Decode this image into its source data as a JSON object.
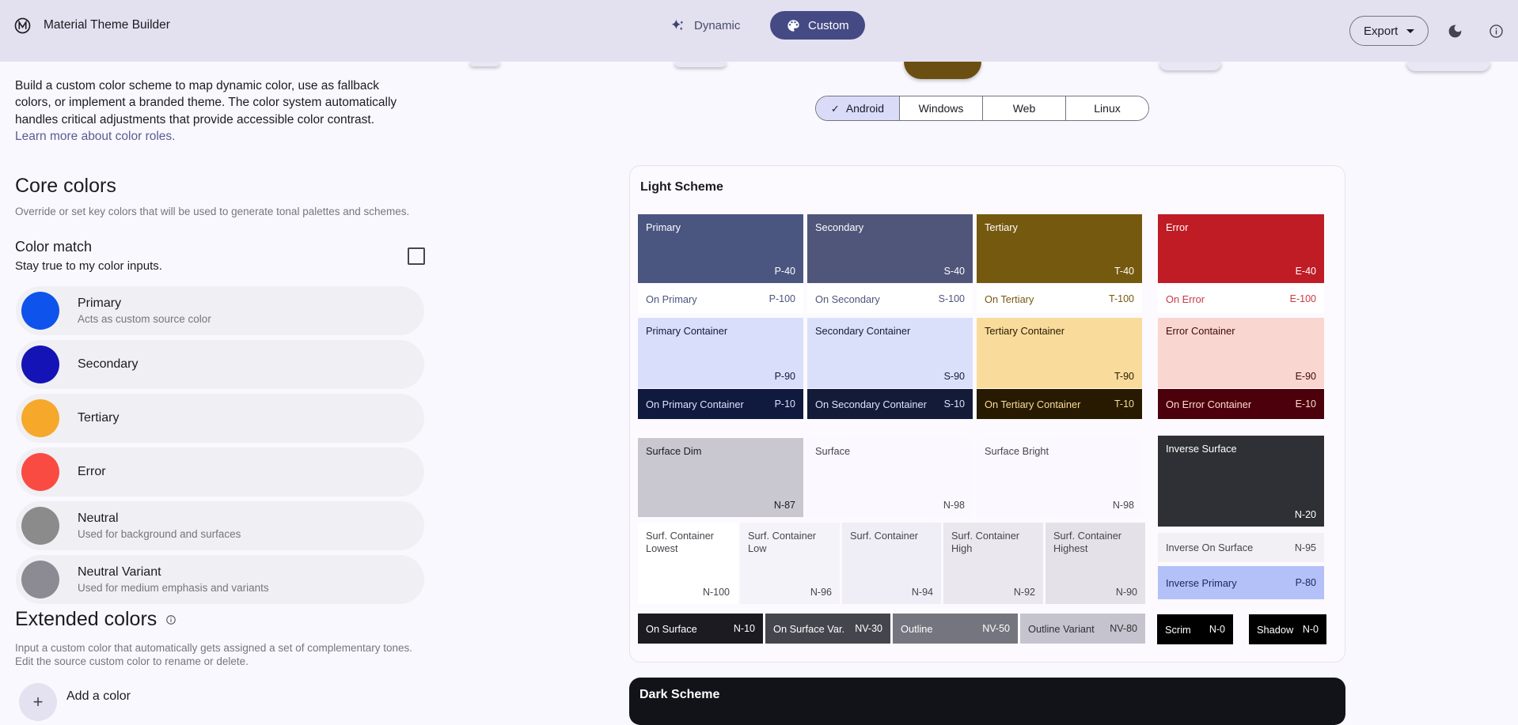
{
  "theme": {
    "header_bg": "#E3E1F0",
    "page_bg": "#FAF8FF",
    "custom_button_bg": "#454A85",
    "selected_platform_bg": "#DADBF7",
    "link_color": "#575E91",
    "clipped_swatch_brown": "#6B4E12",
    "clipped_swatch_light": "#E9E7F3"
  },
  "icons": {
    "check": "✓",
    "plus": "+"
  },
  "header": {
    "title": "Material Theme Builder",
    "dynamic_label": "Dynamic",
    "custom_label": "Custom",
    "export_label": "Export"
  },
  "sidebar": {
    "intro_lines": [
      "Build a custom color scheme to map dynamic color, use as fallback",
      "colors, or implement a branded theme. The color system automatically",
      "handles critical adjustments that provide accessible color contrast."
    ],
    "intro_link": "Learn more about color roles.",
    "core_colors": {
      "title": "Core colors",
      "subtitle": "Override or set key colors that will be used to generate tonal palettes and schemes.",
      "color_match": {
        "title": "Color match",
        "subtitle": "Stay true to my color inputs.",
        "checked": false
      },
      "colors": [
        {
          "name": "Primary",
          "description": "Acts as custom source color",
          "swatch": "#0E53EB"
        },
        {
          "name": "Secondary",
          "description": "",
          "swatch": "#1414B6"
        },
        {
          "name": "Tertiary",
          "description": "",
          "swatch": "#F6A82B"
        },
        {
          "name": "Error",
          "description": "",
          "swatch": "#F94B42"
        },
        {
          "name": "Neutral",
          "description": "Used for background and surfaces",
          "swatch": "#8B8B8B"
        },
        {
          "name": "Neutral Variant",
          "description": "Used for medium emphasis and variants",
          "swatch": "#8C8B94"
        }
      ]
    },
    "extended_colors": {
      "title": "Extended colors",
      "subtitle_lines": [
        "Input a custom color that automatically gets assigned a set of complementary tones.",
        "Edit the source custom color to rename or delete."
      ],
      "add_label": "Add a color"
    }
  },
  "platforms": [
    {
      "label": "Android",
      "selected": true
    },
    {
      "label": "Windows",
      "selected": false
    },
    {
      "label": "Web",
      "selected": false
    },
    {
      "label": "Linux",
      "selected": false
    }
  ],
  "light_scheme": {
    "title": "Light Scheme",
    "cells": [
      {
        "key": "primary",
        "label": "Primary",
        "tone": "P-40",
        "bg": "#4A5580",
        "fg": "#FFFFFF",
        "type": "tall"
      },
      {
        "key": "secondary",
        "label": "Secondary",
        "tone": "S-40",
        "bg": "#4F567A",
        "fg": "#FFFFFF",
        "type": "tall"
      },
      {
        "key": "tertiary",
        "label": "Tertiary",
        "tone": "T-40",
        "bg": "#75590F",
        "fg": "#FFFFFF",
        "type": "tall"
      },
      {
        "key": "error",
        "label": "Error",
        "tone": "E-40",
        "bg": "#BF1C26",
        "fg": "#FFFFFF",
        "type": "tall"
      },
      {
        "key": "on-primary",
        "label": "On Primary",
        "tone": "P-100",
        "bg": "#FFFFFF",
        "fg": "#4A5580",
        "type": "slim"
      },
      {
        "key": "on-secondary",
        "label": "On Secondary",
        "tone": "S-100",
        "bg": "#FFFFFF",
        "fg": "#4F567A",
        "type": "slim"
      },
      {
        "key": "on-tertiary",
        "label": "On Tertiary",
        "tone": "T-100",
        "bg": "#FFFFFF",
        "fg": "#75590F",
        "type": "slim"
      },
      {
        "key": "on-error",
        "label": "On Error",
        "tone": "E-100",
        "bg": "#FFFFFF",
        "fg": "#CC3845",
        "type": "slim"
      },
      {
        "key": "primary-container",
        "label": "Primary Container",
        "tone": "P-90",
        "bg": "#D9DEFB",
        "fg": "#101A3E",
        "type": "tall"
      },
      {
        "key": "secondary-container",
        "label": "Secondary Container",
        "tone": "S-90",
        "bg": "#DBE0FA",
        "fg": "#141B39",
        "type": "tall"
      },
      {
        "key": "tertiary-container",
        "label": "Tertiary Container",
        "tone": "T-90",
        "bg": "#F9DC9B",
        "fg": "#271A00",
        "type": "tall"
      },
      {
        "key": "error-container",
        "label": "Error Container",
        "tone": "E-90",
        "bg": "#FAD6D1",
        "fg": "#410A06",
        "type": "tall"
      },
      {
        "key": "on-primary-container",
        "label": "On Primary Container",
        "tone": "P-10",
        "bg": "#101A3E",
        "fg": "#DCE1FD",
        "type": "slim"
      },
      {
        "key": "on-secondary-container",
        "label": "On Secondary Container",
        "tone": "S-10",
        "bg": "#141B39",
        "fg": "#DDE1FB",
        "type": "slim"
      },
      {
        "key": "on-tertiary-container",
        "label": "On Tertiary Container",
        "tone": "T-10",
        "bg": "#271A00",
        "fg": "#F9DC9B",
        "type": "slim"
      },
      {
        "key": "on-error-container",
        "label": "On Error Container",
        "tone": "E-10",
        "bg": "#4C000B",
        "fg": "#FFD9D3",
        "type": "slim"
      },
      {
        "key": "surface-dim",
        "label": "Surface Dim",
        "tone": "N-87",
        "bg": "#C9C8D0",
        "fg": "#1C1B21",
        "type": "tall"
      },
      {
        "key": "surface",
        "label": "Surface",
        "tone": "N-98",
        "bg": "#FBF9FF",
        "fg": "#46464C",
        "type": "tall"
      },
      {
        "key": "surface-bright",
        "label": "Surface Bright",
        "tone": "N-98",
        "bg": "#FBF9FF",
        "fg": "#46464C",
        "type": "tall"
      },
      {
        "key": "surf-container-lowest",
        "label": "Surf. Container Lowest",
        "tone": "N-100",
        "bg": "#FFFFFF",
        "fg": "#45464C",
        "type": "tall"
      },
      {
        "key": "surf-container-low",
        "label": "Surf. Container Low",
        "tone": "N-96",
        "bg": "#F5F3FA",
        "fg": "#45464C",
        "type": "tall"
      },
      {
        "key": "surf-container",
        "label": "Surf. Container",
        "tone": "N-94",
        "bg": "#EFEDF5",
        "fg": "#45464C",
        "type": "tall"
      },
      {
        "key": "surf-container-high",
        "label": "Surf. Container High",
        "tone": "N-92",
        "bg": "#EAE7EF",
        "fg": "#45464C",
        "type": "tall"
      },
      {
        "key": "surf-container-highest",
        "label": "Surf. Container Highest",
        "tone": "N-90",
        "bg": "#E4E1E9",
        "fg": "#45464C",
        "type": "tall"
      },
      {
        "key": "inverse-surface",
        "label": "Inverse Surface",
        "tone": "N-20",
        "bg": "#2F3035",
        "fg": "#FFFFFF",
        "type": "tall"
      },
      {
        "key": "inverse-on-surface",
        "label": "Inverse On Surface",
        "tone": "N-95",
        "bg": "#F2F0F4",
        "fg": "#45464A",
        "type": "slim"
      },
      {
        "key": "inverse-primary",
        "label": "Inverse Primary",
        "tone": "P-80",
        "bg": "#B4C0F8",
        "fg": "#172B63",
        "type": "slim"
      },
      {
        "key": "on-surface",
        "label": "On Surface",
        "tone": "N-10",
        "bg": "#1C1B22",
        "fg": "#FFFFFF",
        "type": "slim"
      },
      {
        "key": "on-surface-var",
        "label": "On Surface Var.",
        "tone": "NV-30",
        "bg": "#45464D",
        "fg": "#FFFFFF",
        "type": "slim"
      },
      {
        "key": "outline",
        "label": "Outline",
        "tone": "NV-50",
        "bg": "#74757E",
        "fg": "#FFFFFF",
        "type": "slim"
      },
      {
        "key": "outline-variant",
        "label": "Outline Variant",
        "tone": "NV-80",
        "bg": "#C5C4CE",
        "fg": "#303034",
        "type": "slim"
      },
      {
        "key": "scrim",
        "label": "Scrim",
        "tone": "N-0",
        "bg": "#000000",
        "fg": "#FFFFFF",
        "type": "slim"
      },
      {
        "key": "shadow",
        "label": "Shadow",
        "tone": "N-0",
        "bg": "#000000",
        "fg": "#FFFFFF",
        "type": "slim"
      }
    ]
  },
  "dark_scheme": {
    "title": "Dark Scheme"
  }
}
